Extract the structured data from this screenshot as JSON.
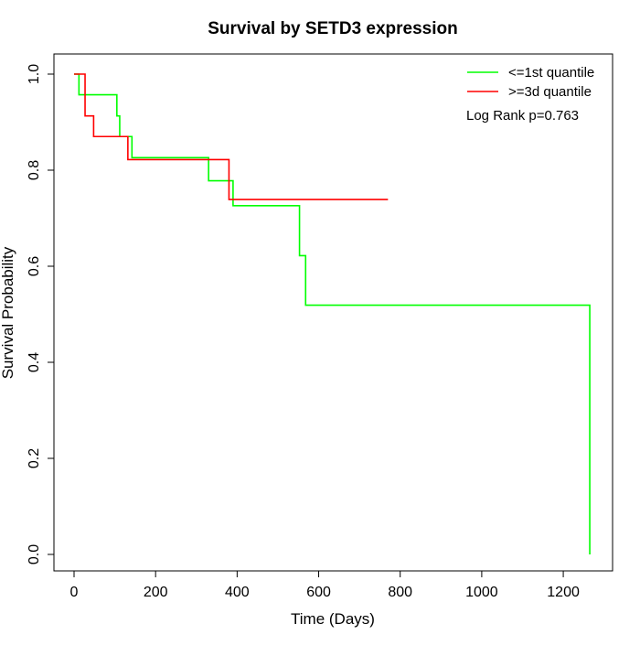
{
  "chart_data": {
    "type": "line",
    "title": "Survival by SETD3 expression",
    "xlabel": "Time (Days)",
    "ylabel": "Survival Probability",
    "xlim": [
      0,
      1265
    ],
    "ylim": [
      0,
      1.0
    ],
    "x_ticks": [
      "0",
      "200",
      "400",
      "600",
      "800",
      "1000",
      "1200"
    ],
    "y_ticks": [
      "0.0",
      "0.2",
      "0.4",
      "0.6",
      "0.8",
      "1.0"
    ],
    "grid": false,
    "legend_position": "top-right",
    "annotation": "Log Rank p=0.763",
    "series": [
      {
        "name": "<=1st quantile",
        "color": "#00ff00",
        "step_points": [
          [
            0,
            1.0
          ],
          [
            12,
            0.957
          ],
          [
            105,
            0.913
          ],
          [
            112,
            0.87
          ],
          [
            142,
            0.826
          ],
          [
            330,
            0.778
          ],
          [
            390,
            0.726
          ],
          [
            553,
            0.622
          ],
          [
            568,
            0.519
          ],
          [
            1265,
            0.0
          ]
        ]
      },
      {
        "name": ">=3d quantile",
        "color": "#ff0000",
        "step_points": [
          [
            0,
            1.0
          ],
          [
            27,
            0.913
          ],
          [
            48,
            0.87
          ],
          [
            132,
            0.822
          ],
          [
            380,
            0.739
          ],
          [
            770,
            0.739
          ]
        ]
      }
    ]
  }
}
